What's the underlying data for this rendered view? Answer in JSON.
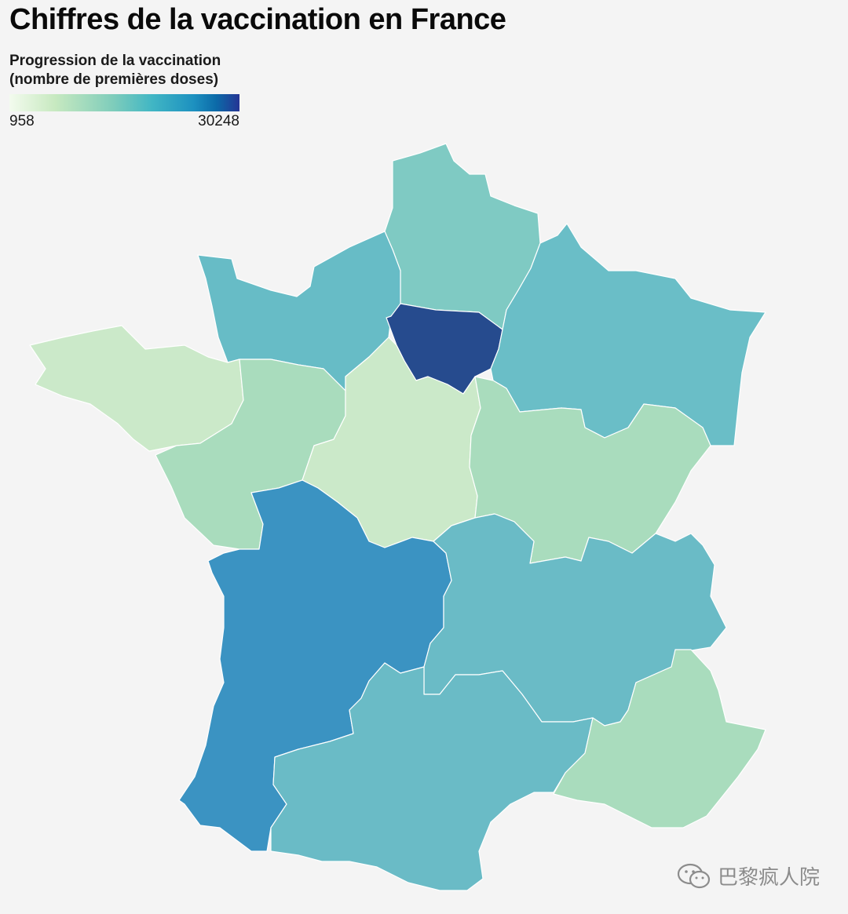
{
  "title": "Chiffres de la vaccination en France",
  "legend": {
    "title_line1": "Progression de la vaccination",
    "title_line2": "(nombre de premières doses)",
    "min_label": "958",
    "max_label": "30248",
    "min_value": 958,
    "max_value": 30248,
    "colors": [
      "#f3fbee",
      "#c7e9c0",
      "#7fcdbb",
      "#41b6c4",
      "#1d91c0",
      "#0c6aa8",
      "#253494"
    ]
  },
  "map": {
    "region_colors": {
      "hauts-de-france": "#7fcac3",
      "normandie": "#67bcc6",
      "ile-de-france": "#264b8e",
      "grand-est": "#6abec7",
      "bretagne": "#cbe9c9",
      "pays-de-la-loire": "#a9dcbd",
      "centre-val-de-loire": "#cbe9c9",
      "bourgogne-franche-comte": "#a9dcbd",
      "nouvelle-aquitaine": "#3b93c2",
      "auvergne-rhone-alpes": "#6abbc6",
      "occitanie": "#6abbc6",
      "provence-alpes-cote-dazur": "#a9dcbd"
    }
  },
  "watermark": {
    "text": "巴黎疯人院",
    "icon": "wechat-icon"
  }
}
